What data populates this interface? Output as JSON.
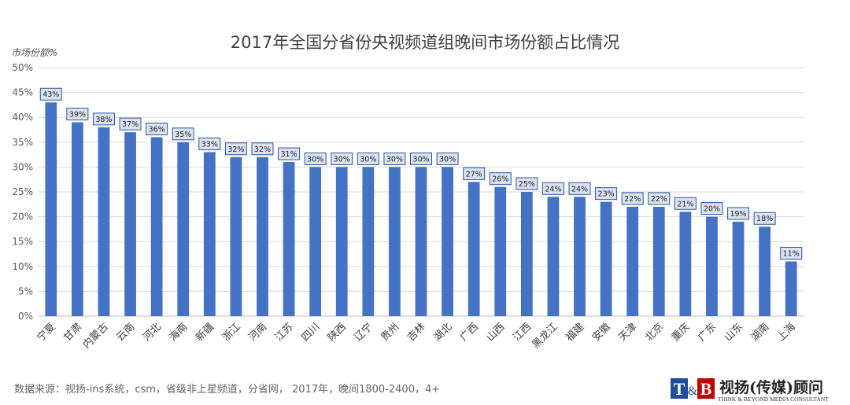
{
  "chart_data": {
    "type": "bar",
    "title": "2017年全国分省份央视频道组晚间市场份额占比情况",
    "ylabel": "市场份额%",
    "xlabel": "",
    "ylim": [
      0,
      50
    ],
    "yticks": [
      "0%",
      "5%",
      "10%",
      "15%",
      "20%",
      "25%",
      "30%",
      "35%",
      "40%",
      "45%",
      "50%"
    ],
    "grid": true,
    "categories": [
      "宁夏",
      "甘肃",
      "内蒙古",
      "云南",
      "河北",
      "海南",
      "新疆",
      "浙江",
      "河南",
      "江苏",
      "四川",
      "陕西",
      "辽宁",
      "贵州",
      "吉林",
      "湖北",
      "广西",
      "山西",
      "江西",
      "黑龙江",
      "福建",
      "安徽",
      "天津",
      "北京",
      "重庆",
      "广东",
      "山东",
      "湖南",
      "上海"
    ],
    "values": [
      43,
      39,
      38,
      37,
      36,
      35,
      33,
      32,
      32,
      31,
      30,
      30,
      30,
      30,
      30,
      30,
      27,
      26,
      25,
      24,
      24,
      23,
      22,
      22,
      21,
      20,
      19,
      18,
      11
    ],
    "labels": [
      "43%",
      "39%",
      "38%",
      "37%",
      "36%",
      "35%",
      "33%",
      "32%",
      "32%",
      "31%",
      "30%",
      "30%",
      "30%",
      "30%",
      "30%",
      "30%",
      "27%",
      "26%",
      "25%",
      "24%",
      "24%",
      "23%",
      "22%",
      "22%",
      "21%",
      "20%",
      "19%",
      "18%",
      "11%"
    ],
    "colors": {
      "bar": "#4472C4",
      "label_fill": "#DAE3F3",
      "label_stroke": "#2F5597",
      "grid": "#D9D9D9"
    }
  },
  "footer": {
    "source": "数据来源：视扬-ins系统，csm，省级非上星频道，分省网， 2017年，晚间1800-2400，4+"
  },
  "logo": {
    "mark_t": "T",
    "mark_amp": "&",
    "mark_b": "B",
    "name": "视扬(传媒)顾问",
    "tagline": "THINK & BEYOND MEDIA CONSULTANT"
  }
}
